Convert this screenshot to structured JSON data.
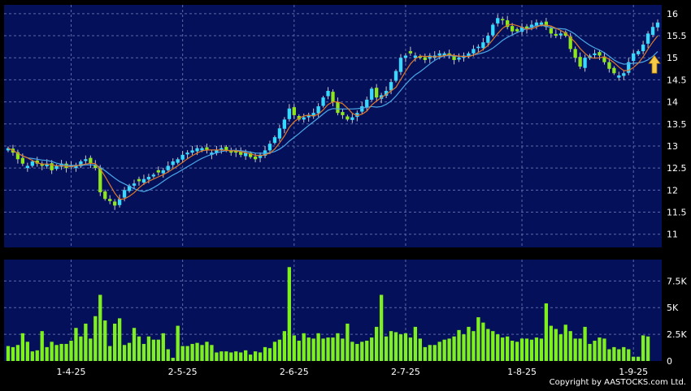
{
  "chart_data": [
    {
      "type": "candlestick",
      "panel": "price",
      "background": "#05105a",
      "grid_color": "#5a6aa8",
      "colors": {
        "up": "#36d9ff",
        "down": "#8ee61c",
        "ma_short": "#e07828",
        "ma_long": "#4aa8e8"
      },
      "ylim": [
        10.7,
        16.2
      ],
      "y_ticks": [
        "11",
        "11.5",
        "12",
        "12.5",
        "13",
        "13.5",
        "14",
        "14.5",
        "15",
        "15.5",
        "16"
      ],
      "x_tick_labels": [
        "1-4-25",
        "2-5-25",
        "2-6-25",
        "2-7-25",
        "1-8-25",
        "1-9-25"
      ],
      "x_tick_index": [
        13,
        36,
        59,
        82,
        106,
        129
      ],
      "close": [
        12.95,
        12.85,
        12.7,
        12.6,
        12.55,
        12.65,
        12.6,
        12.55,
        12.6,
        12.45,
        12.55,
        12.6,
        12.5,
        12.55,
        12.55,
        12.65,
        12.7,
        12.6,
        12.5,
        11.95,
        11.8,
        11.75,
        11.65,
        11.8,
        12.0,
        12.1,
        12.15,
        12.2,
        12.25,
        12.3,
        12.35,
        12.4,
        12.45,
        12.55,
        12.65,
        12.7,
        12.8,
        12.85,
        12.9,
        12.95,
        12.95,
        12.9,
        12.85,
        12.9,
        12.95,
        12.9,
        12.85,
        12.85,
        12.8,
        12.85,
        12.75,
        12.7,
        12.8,
        12.9,
        13.05,
        13.2,
        13.4,
        13.6,
        13.85,
        13.7,
        13.6,
        13.65,
        13.7,
        13.75,
        13.9,
        14.1,
        14.25,
        14.0,
        13.75,
        13.7,
        13.6,
        13.65,
        13.75,
        13.9,
        14.05,
        14.3,
        14.1,
        14.15,
        14.25,
        14.45,
        14.7,
        15.0,
        15.05,
        15.1,
        15.05,
        15.0,
        14.95,
        15.05,
        15.05,
        15.1,
        15.1,
        15.05,
        14.95,
        15.0,
        15.05,
        15.1,
        15.2,
        15.25,
        15.35,
        15.5,
        15.75,
        15.9,
        15.85,
        15.7,
        15.6,
        15.6,
        15.7,
        15.65,
        15.75,
        15.8,
        15.8,
        15.7,
        15.55,
        15.5,
        15.55,
        15.5,
        15.2,
        15.0,
        14.8,
        15.0,
        15.05,
        15.1,
        15.05,
        14.9,
        14.75,
        14.65,
        14.6,
        14.65,
        14.9,
        15.1,
        15.15,
        15.3,
        15.55,
        15.7,
        15.8
      ]
    },
    {
      "type": "bar",
      "panel": "volume",
      "ylim": [
        0,
        9200
      ],
      "y_ticks": [
        "0",
        "2.5K",
        "5K",
        "7.5K"
      ],
      "bar_color": "#7ef01e",
      "values": [
        1400,
        1300,
        1500,
        2600,
        1800,
        900,
        1000,
        2800,
        1300,
        1800,
        1500,
        1600,
        1600,
        1900,
        3100,
        2300,
        3500,
        2100,
        4200,
        6200,
        3800,
        1400,
        3500,
        4000,
        1500,
        1700,
        3100,
        2300,
        1600,
        2300,
        2000,
        2000,
        2600,
        1100,
        300,
        3300,
        1400,
        1400,
        1600,
        1700,
        1500,
        1800,
        1500,
        800,
        900,
        900,
        800,
        900,
        800,
        1000,
        600,
        900,
        800,
        1300,
        1200,
        1800,
        2000,
        2800,
        8800,
        2400,
        1900,
        2600,
        2200,
        2100,
        2600,
        2100,
        2200,
        2200,
        2600,
        2100,
        3500,
        1800,
        1600,
        1800,
        1900,
        2200,
        3200,
        6200,
        2300,
        2800,
        2700,
        2500,
        2600,
        2200,
        3200,
        2100,
        1300,
        1500,
        1500,
        1800,
        2000,
        2100,
        2300,
        2900,
        2500,
        3200,
        2800,
        4100,
        3600,
        3000,
        2800,
        2500,
        2200,
        2300,
        1900,
        1800,
        2100,
        2100,
        2000,
        2200,
        2100,
        5400,
        3300,
        3000,
        2500,
        3400,
        2800,
        2100,
        2100,
        3200,
        1600,
        1900,
        2200,
        2100,
        1100,
        1300,
        1100,
        1300,
        1100,
        400,
        400,
        2400,
        2300
      ]
    }
  ],
  "copyright": "Copyright by AASTOCKS.com Ltd.",
  "arrow_icon": "up-arrow-icon"
}
